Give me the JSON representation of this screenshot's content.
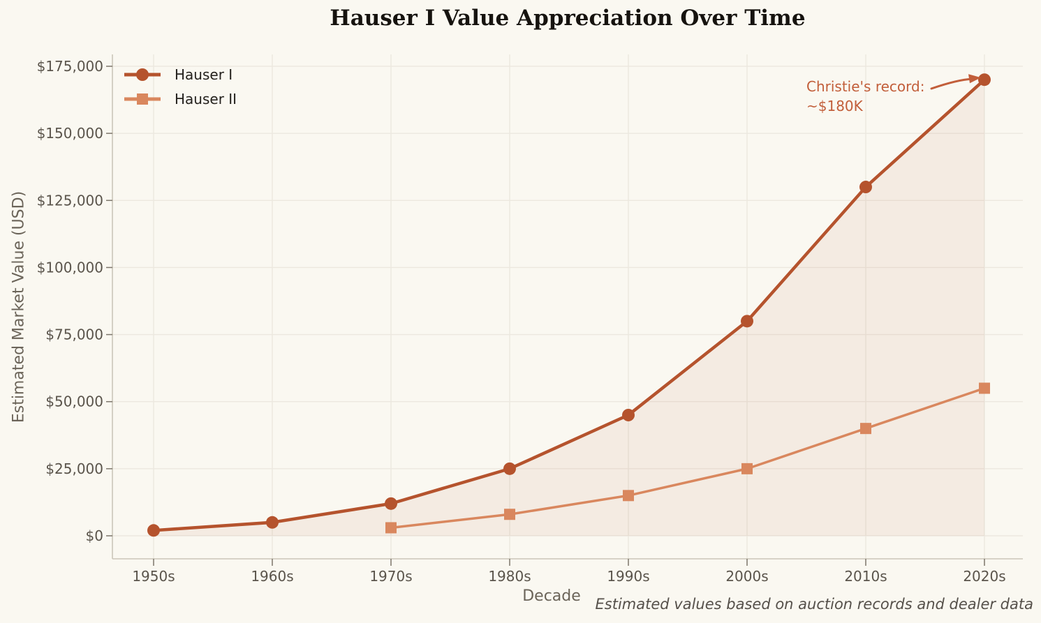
{
  "chart_data": {
    "type": "line",
    "title": "Hauser I Value Appreciation Over Time",
    "xlabel": "Decade",
    "ylabel": "Estimated Market Value (USD)",
    "categories": [
      "1950s",
      "1960s",
      "1970s",
      "1980s",
      "1990s",
      "2000s",
      "2010s",
      "2020s"
    ],
    "series": [
      {
        "name": "Hauser I",
        "marker": "circle",
        "color": "#b5532d",
        "line_width": 4.5,
        "values": [
          2000,
          5000,
          12000,
          25000,
          45000,
          80000,
          130000,
          170000
        ],
        "area_fill": true,
        "fill_opacity": 0.08
      },
      {
        "name": "Hauser II",
        "marker": "square",
        "color": "#d9875e",
        "line_width": 3.5,
        "values": [
          null,
          null,
          3000,
          8000,
          15000,
          25000,
          40000,
          55000
        ],
        "area_fill": false,
        "fill_opacity": 0
      }
    ],
    "ylim": [
      0,
      175000
    ],
    "yticks": [
      0,
      25000,
      50000,
      75000,
      100000,
      125000,
      150000,
      175000
    ],
    "ytick_labels": [
      "$0",
      "$25,000",
      "$50,000",
      "$75,000",
      "$100,000",
      "$125,000",
      "$150,000",
      "$175,000"
    ],
    "grid": true,
    "legend_position": "upper-left",
    "annotation": {
      "line1": "Christie's record:",
      "line2": "~$180K",
      "color": "#c25e3a",
      "points_to": {
        "series": "Hauser I",
        "category": "2020s",
        "value": 170000
      }
    },
    "footnote": "Estimated values based on auction records and dealer data"
  },
  "colors": {
    "background": "#faf8f1",
    "grid": "#ece8df",
    "spine": "#cbc6b9",
    "tick": "#7c766b",
    "tick_label": "#5a544b",
    "axis_label": "#6b6459",
    "title": "#16130f",
    "legend_text": "#24211d",
    "footnote_text": "#55504a"
  }
}
